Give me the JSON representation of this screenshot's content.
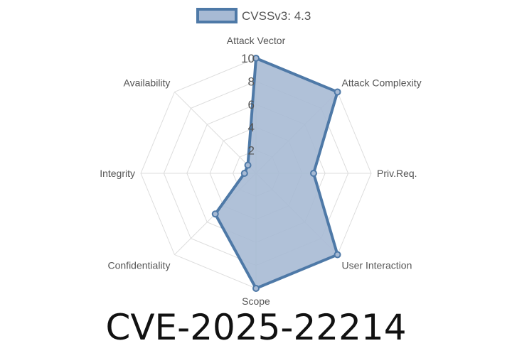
{
  "chart_data": {
    "type": "radar",
    "axes": [
      "Attack Vector",
      "Attack Complexity",
      "Priv.Req.",
      "User Interaction",
      "Scope",
      "Confidentiality",
      "Integrity",
      "Availability"
    ],
    "series": [
      {
        "name": "CVSSv3: 4.3",
        "values": [
          10,
          10,
          5,
          10,
          10,
          5,
          1,
          1
        ]
      }
    ],
    "rlim": [
      0,
      10
    ],
    "r_ticks": [
      "2",
      "4",
      "6",
      "8",
      "10"
    ],
    "legend": "top",
    "grid": true,
    "colors": {
      "line": "#4e79a7",
      "fill": "#a7bad4",
      "grid": "#dddddd"
    }
  },
  "title": "CVE-2025-22214"
}
